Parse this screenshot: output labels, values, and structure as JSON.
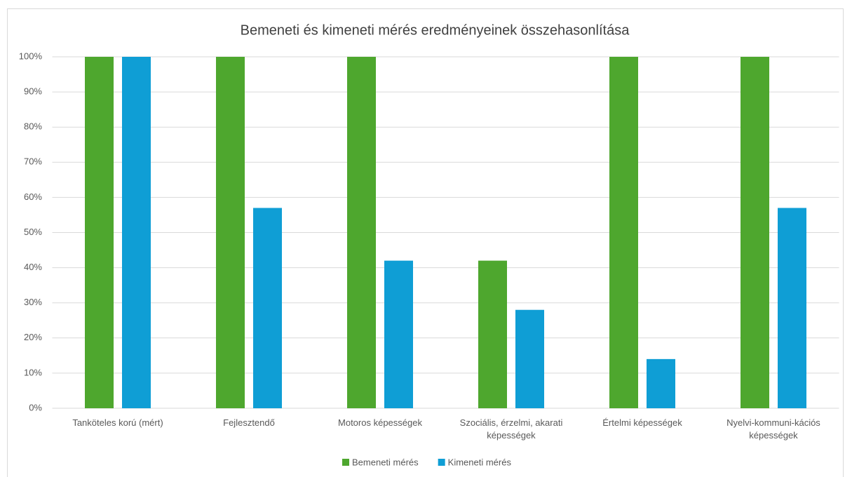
{
  "chart_data": {
    "type": "bar",
    "title": "Bemeneti és kimeneti mérés eredményeinek összehasonlítása",
    "categories": [
      "Tanköteles korú (mért)",
      "Fejlesztendő",
      "Motoros képességek",
      "Szociális, érzelmi, akarati képességek",
      "Értelmi képességek",
      "Nyelvi-kommuni-kációs képességek"
    ],
    "series": [
      {
        "name": "Bemeneti mérés",
        "color": "#4ea72e",
        "values": [
          100,
          100,
          100,
          42,
          100,
          100
        ]
      },
      {
        "name": "Kimeneti mérés",
        "color": "#0f9ed5",
        "values": [
          100,
          57,
          42,
          28,
          14,
          57
        ]
      }
    ],
    "ylim": [
      0,
      100
    ],
    "yticks": [
      {
        "value": 0,
        "label": "0%"
      },
      {
        "value": 10,
        "label": "10%"
      },
      {
        "value": 20,
        "label": "20%"
      },
      {
        "value": 30,
        "label": "30%"
      },
      {
        "value": 40,
        "label": "40%"
      },
      {
        "value": 50,
        "label": "50%"
      },
      {
        "value": 60,
        "label": "60%"
      },
      {
        "value": 70,
        "label": "70%"
      },
      {
        "value": 80,
        "label": "80%"
      },
      {
        "value": 90,
        "label": "90%"
      },
      {
        "value": 100,
        "label": "100%"
      }
    ],
    "grid": true,
    "legend": "bottom"
  }
}
